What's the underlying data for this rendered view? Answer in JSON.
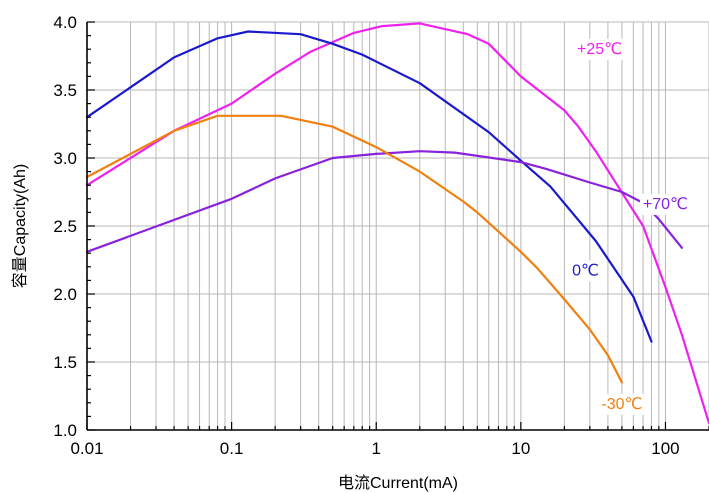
{
  "chart_data": {
    "type": "line",
    "xlabel": "电流Current(mA)",
    "ylabel": "容量Capacity(Ah)",
    "x_scale": "log",
    "xlim": [
      0.01,
      200
    ],
    "ylim": [
      1.0,
      4.0
    ],
    "grid": true,
    "x_ticks": [
      {
        "value": 0.01,
        "label": "0.01"
      },
      {
        "value": 0.1,
        "label": "0.1"
      },
      {
        "value": 1,
        "label": "1"
      },
      {
        "value": 10,
        "label": "10"
      },
      {
        "value": 100,
        "label": "100"
      }
    ],
    "y_ticks": [
      {
        "value": 1.0,
        "label": "1.0"
      },
      {
        "value": 1.5,
        "label": "1.5"
      },
      {
        "value": 2.0,
        "label": "2.0"
      },
      {
        "value": 2.5,
        "label": "2.5"
      },
      {
        "value": 3.0,
        "label": "3.0"
      },
      {
        "value": 3.5,
        "label": "3.5"
      },
      {
        "value": 4.0,
        "label": "4.0"
      }
    ],
    "series": [
      {
        "name": "+25℃",
        "color": "#ee22ee",
        "points": [
          [
            0.01,
            2.8
          ],
          [
            0.04,
            3.2
          ],
          [
            0.1,
            3.4
          ],
          [
            0.2,
            3.62
          ],
          [
            0.35,
            3.78
          ],
          [
            0.7,
            3.92
          ],
          [
            1.1,
            3.97
          ],
          [
            2,
            3.99
          ],
          [
            4.3,
            3.91
          ],
          [
            6,
            3.84
          ],
          [
            10,
            3.6
          ],
          [
            20,
            3.35
          ],
          [
            25,
            3.23
          ],
          [
            33,
            3.05
          ],
          [
            70,
            2.5
          ],
          [
            100,
            2.05
          ],
          [
            130,
            1.7
          ],
          [
            200,
            1.05
          ]
        ]
      },
      {
        "name": "0℃",
        "color": "#1a1acc",
        "points": [
          [
            0.01,
            3.3
          ],
          [
            0.04,
            3.74
          ],
          [
            0.08,
            3.88
          ],
          [
            0.13,
            3.93
          ],
          [
            0.3,
            3.91
          ],
          [
            0.5,
            3.84
          ],
          [
            0.8,
            3.76
          ],
          [
            2,
            3.55
          ],
          [
            6,
            3.19
          ],
          [
            10,
            2.98
          ],
          [
            16,
            2.79
          ],
          [
            33,
            2.39
          ],
          [
            60,
            1.98
          ],
          [
            80,
            1.65
          ]
        ]
      },
      {
        "name": "+70℃",
        "color": "#8822dd",
        "points": [
          [
            0.01,
            2.31
          ],
          [
            0.1,
            2.7
          ],
          [
            0.2,
            2.85
          ],
          [
            0.5,
            3.0
          ],
          [
            1,
            3.03
          ],
          [
            2,
            3.05
          ],
          [
            3.5,
            3.04
          ],
          [
            10,
            2.97
          ],
          [
            15,
            2.92
          ],
          [
            30,
            2.82
          ],
          [
            50,
            2.75
          ],
          [
            70,
            2.67
          ],
          [
            90,
            2.55
          ],
          [
            130,
            2.34
          ]
        ]
      },
      {
        "name": "-30℃",
        "color": "#f08010",
        "points": [
          [
            0.01,
            2.86
          ],
          [
            0.04,
            3.2
          ],
          [
            0.08,
            3.31
          ],
          [
            0.22,
            3.31
          ],
          [
            0.5,
            3.23
          ],
          [
            1,
            3.08
          ],
          [
            2,
            2.9
          ],
          [
            4,
            2.68
          ],
          [
            5,
            2.6
          ],
          [
            10,
            2.31
          ],
          [
            13,
            2.19
          ],
          [
            20,
            1.96
          ],
          [
            30,
            1.74
          ],
          [
            40,
            1.55
          ],
          [
            50,
            1.35
          ]
        ]
      }
    ],
    "labels": [
      {
        "text": "+25℃",
        "color": "#ee22ee",
        "x": 35,
        "y": 3.81
      },
      {
        "text": "0℃",
        "color": "#1a1acc",
        "x": 28,
        "y": 2.18
      },
      {
        "text": "+70℃",
        "color": "#8822dd",
        "x": 100,
        "y": 2.67
      },
      {
        "text": "-30℃",
        "color": "#f08010",
        "x": 50,
        "y": 1.2
      }
    ]
  }
}
